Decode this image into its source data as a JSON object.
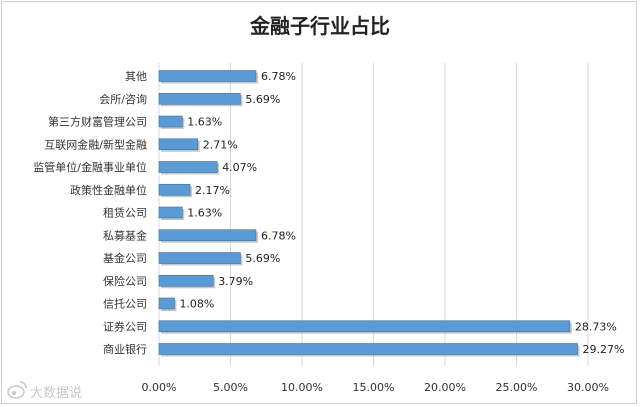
{
  "chart_data": {
    "type": "bar",
    "orientation": "horizontal",
    "title": "金融子行业占比",
    "xlabel": "",
    "ylabel": "",
    "categories": [
      "其他",
      "会所/咨询",
      "第三方财富管理公司",
      "互联网金融/新型金融",
      "监管单位/金融事业单位",
      "政策性金融单位",
      "租赁公司",
      "私募基金",
      "基金公司",
      "保险公司",
      "信托公司",
      "证券公司",
      "商业银行"
    ],
    "values": [
      6.78,
      5.69,
      1.63,
      2.71,
      4.07,
      2.17,
      1.63,
      6.78,
      5.69,
      3.79,
      1.08,
      28.73,
      29.27
    ],
    "value_labels": [
      "6.78%",
      "5.69%",
      "1.63%",
      "2.71%",
      "4.07%",
      "2.17%",
      "1.63%",
      "6.78%",
      "5.69%",
      "3.79%",
      "1.08%",
      "28.73%",
      "29.27%"
    ],
    "xlim": [
      0,
      30
    ],
    "xticks": [
      "0.00%",
      "5.00%",
      "10.00%",
      "15.00%",
      "20.00%",
      "25.00%",
      "30.00%"
    ],
    "grid": true,
    "legend": "none",
    "bar_color": "#5b9bd5"
  },
  "watermark": {
    "icon": "weibo-icon",
    "text": "大数据说"
  }
}
